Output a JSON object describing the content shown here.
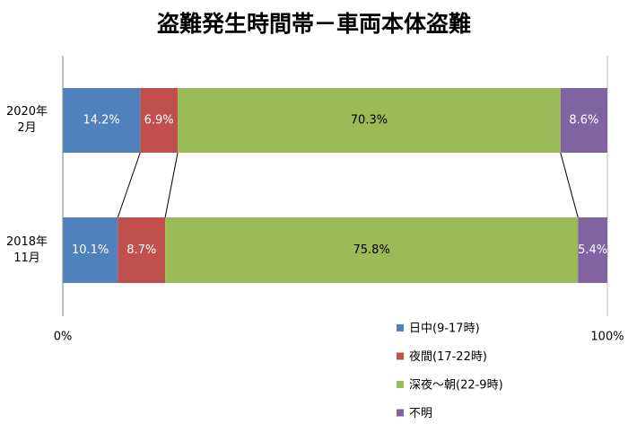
{
  "chart_data": {
    "type": "stacked-bar-horizontal",
    "title": "盗難発生時間帯－車両本体盗難",
    "categories": [
      "2020年\n2月",
      "2018年\n11月"
    ],
    "series": [
      {
        "name": "日中(9-17時)",
        "color": "#4f81bd",
        "label_color": "#ffffff",
        "values": [
          14.2,
          10.1
        ],
        "value_labels": [
          "14.2%",
          "10.1%"
        ]
      },
      {
        "name": "夜間(17-22時)",
        "color": "#c0504d",
        "label_color": "#ffffff",
        "values": [
          6.9,
          8.7
        ],
        "value_labels": [
          "6.9%",
          "8.7%"
        ]
      },
      {
        "name": "深夜～朝(22-9時)",
        "color": "#9bbb59",
        "label_color": "#000000",
        "values": [
          70.3,
          75.8
        ],
        "value_labels": [
          "70.3%",
          "75.8%"
        ]
      },
      {
        "name": "不明",
        "color": "#8064a2",
        "label_color": "#ffffff",
        "values": [
          8.6,
          5.4
        ],
        "value_labels": [
          "8.6%",
          "5.4%"
        ]
      }
    ],
    "xlim": [
      0,
      100
    ],
    "xticks": [
      {
        "value": 0,
        "label": "0%"
      },
      {
        "value": 100,
        "label": "100%"
      }
    ],
    "grid": true
  }
}
